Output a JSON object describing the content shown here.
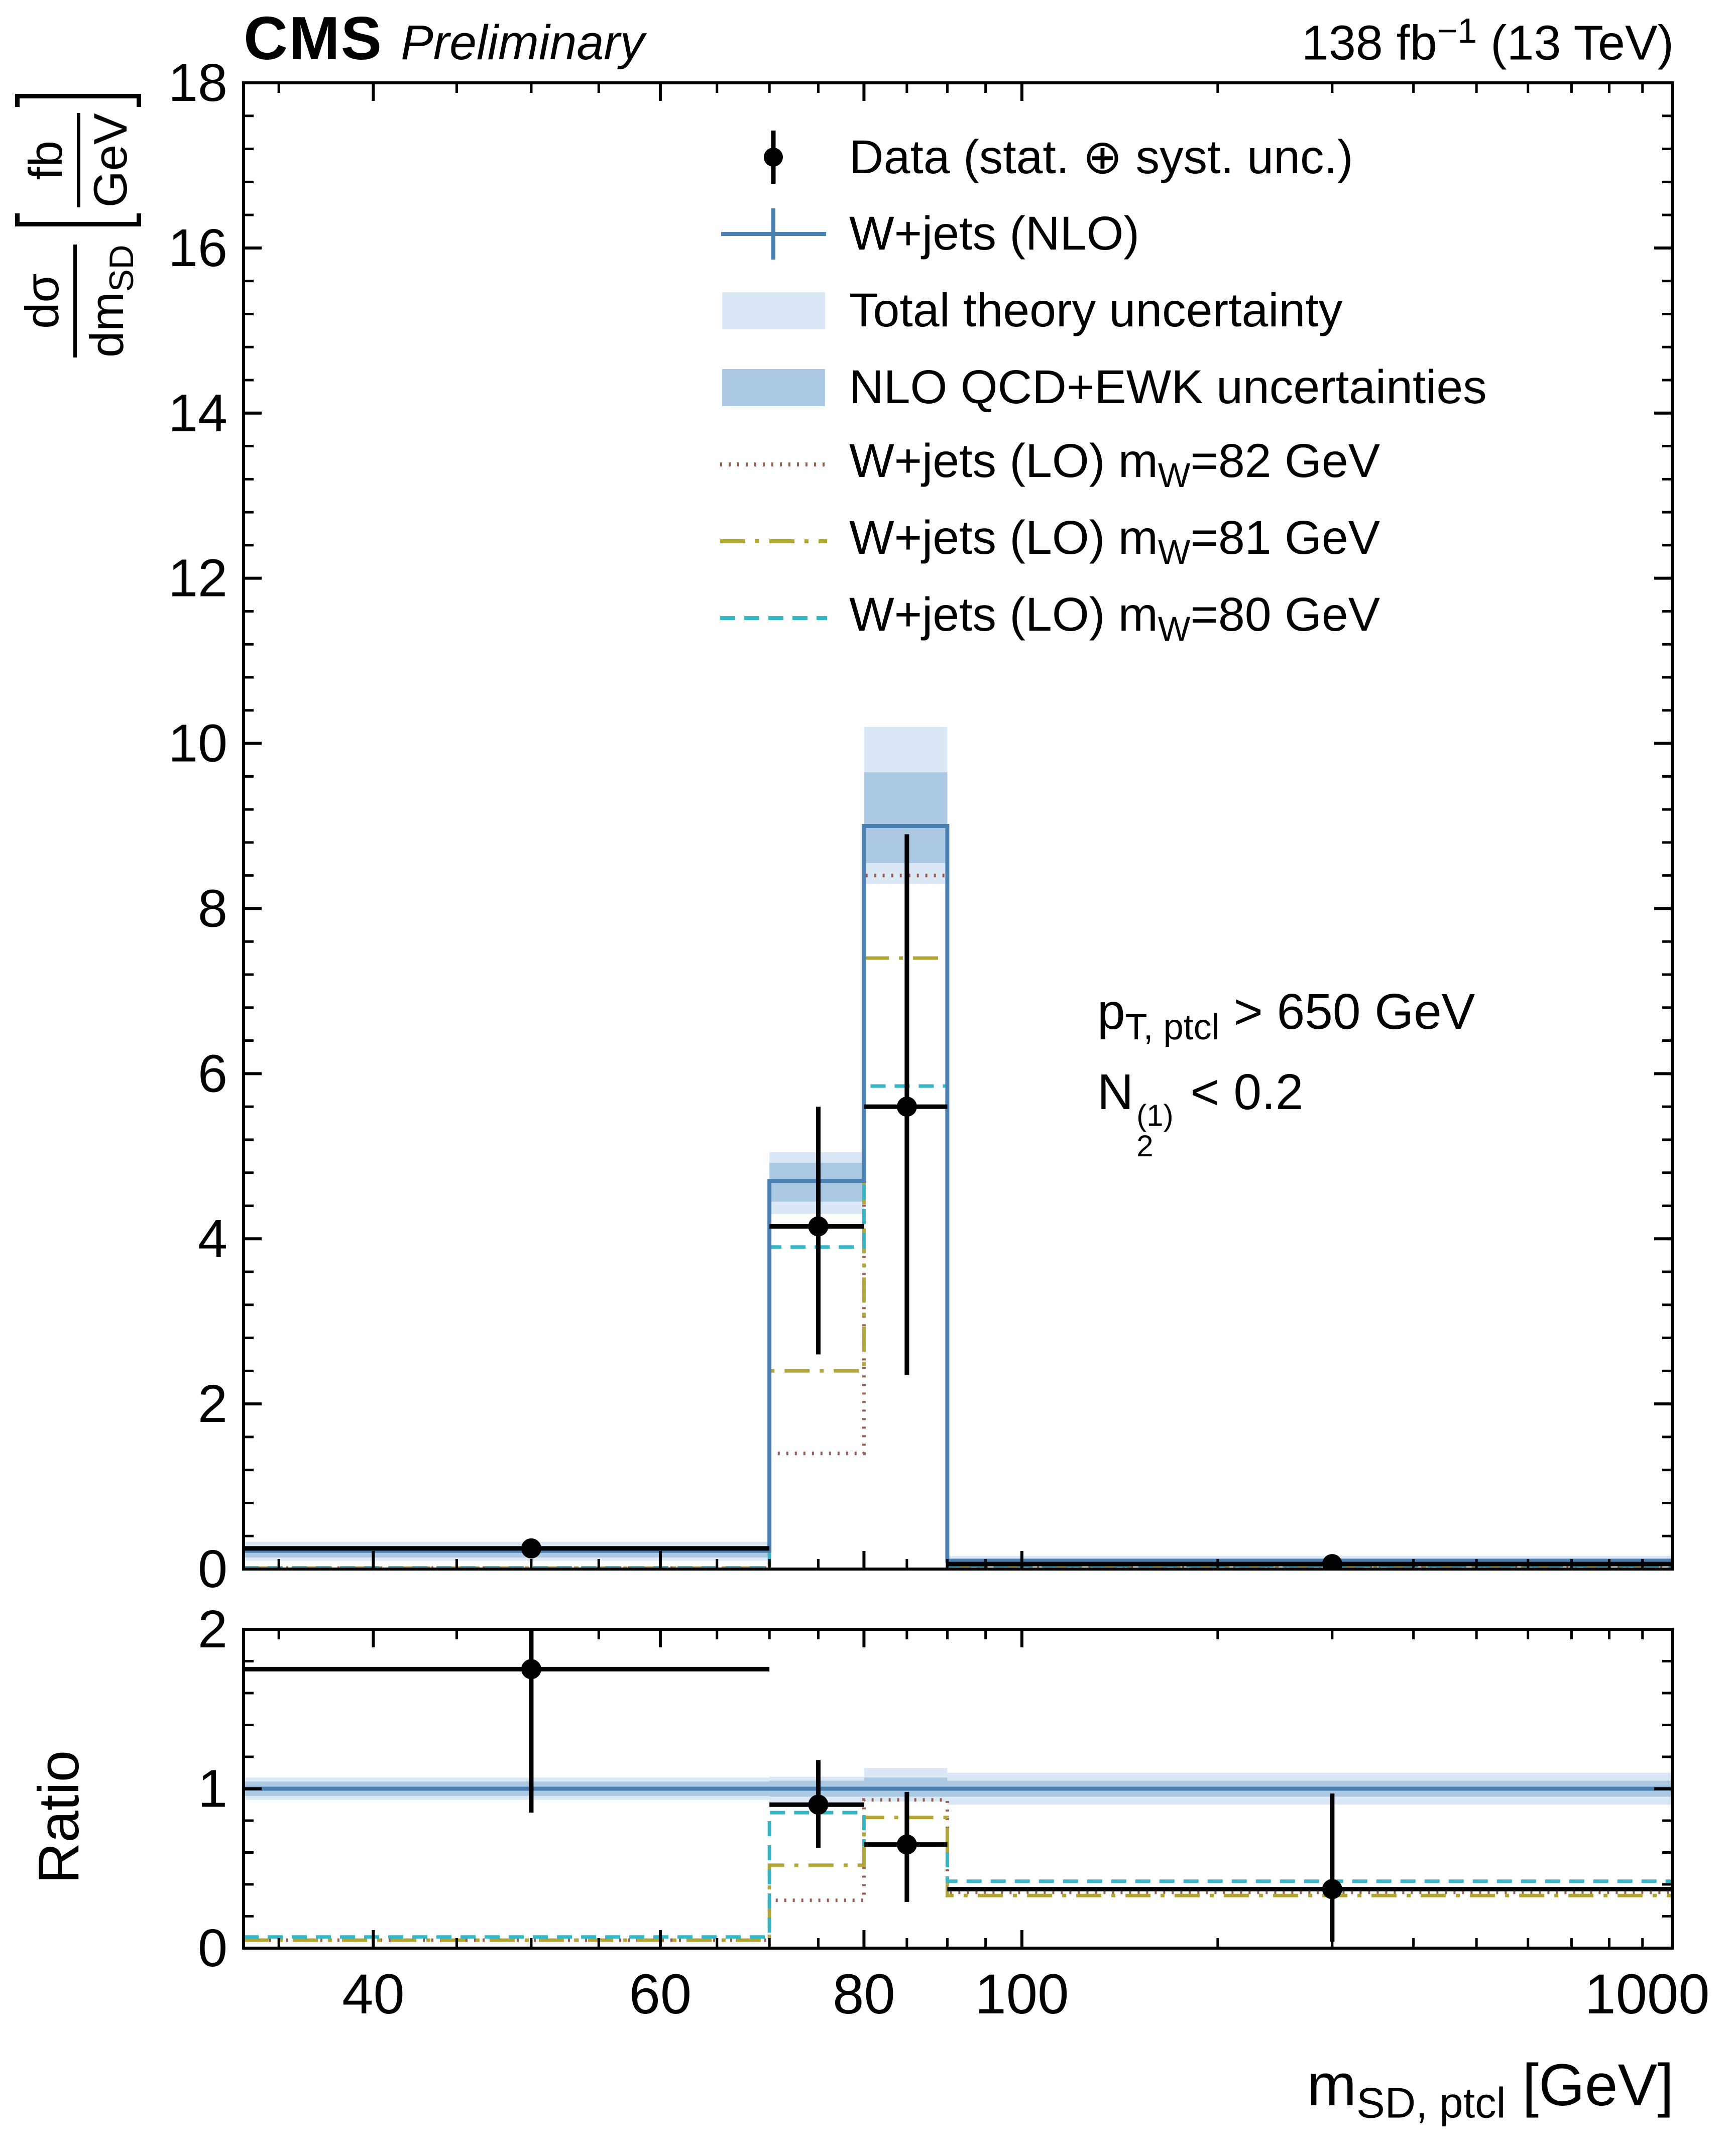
{
  "header": {
    "experiment": "CMS",
    "label": "Preliminary",
    "lumi_prefix": "138 fb",
    "lumi_sup": "−1",
    "lumi_suffix": " (13 TeV)"
  },
  "axis_titles": {
    "y_main": {
      "num": "dσ",
      "den_base": "dm",
      "den_sub": "SD",
      "unit_num": "fb",
      "unit_den": "GeV"
    },
    "y_ratio": "Ratio",
    "x": {
      "base": "m",
      "sub": "SD, ptcl",
      "unit": " [GeV]"
    }
  },
  "annotation": {
    "line1_base": "p",
    "line1_sub": "T, ptcl",
    "line1_rest": " > 650 GeV",
    "line2_base": "N",
    "line2_sup": "(1)",
    "line2_sub": "2",
    "line2_rest": " < 0.2"
  },
  "chart_data": {
    "type": "bar",
    "subtype": "step-histogram-with-ratio-panel",
    "title": "CMS Preliminary 138 fb-1 (13 TeV)",
    "x": {
      "label": "m_SD,ptcl [GeV]",
      "scale": "log-piecewise",
      "range": [
        33.3,
        1000
      ],
      "anchors": [
        [
          33.3,
          0.0
        ],
        [
          100,
          0.5448
        ],
        [
          1000,
          1.0
        ]
      ],
      "major_ticks": [
        40,
        60,
        80,
        100,
        1000
      ],
      "minor_ticks": [
        35,
        45,
        50,
        55,
        65,
        70,
        75,
        85,
        90,
        95,
        200,
        300,
        400,
        500,
        600,
        700,
        800,
        900
      ]
    },
    "y_main": {
      "label": "dσ/dm_SD [fb/GeV]",
      "range": [
        0,
        18
      ],
      "major_step": 2,
      "minor_step": 0.4
    },
    "y_ratio": {
      "label": "Ratio",
      "range": [
        0,
        2
      ],
      "major_ticks": [
        0,
        1,
        2
      ],
      "minor_step": 0.2
    },
    "bin_edges": [
      33.3,
      70,
      80,
      90,
      1000
    ],
    "series": {
      "nlo": {
        "label": "W+jets (NLO)",
        "color": "#4a7fb2",
        "values": [
          0.22,
          4.7,
          9.0,
          0.1
        ],
        "ratio": [
          1,
          1,
          1,
          1
        ]
      },
      "total_unc": {
        "label": "Total theory uncertainty",
        "color": "#dbe9f6",
        "low": [
          0.1,
          4.3,
          8.3,
          0.04
        ],
        "high": [
          0.33,
          5.05,
          10.2,
          0.16
        ],
        "ratio_low": [
          0.93,
          0.915,
          0.92,
          0.9
        ],
        "ratio_high": [
          1.07,
          1.075,
          1.13,
          1.1
        ]
      },
      "qcd_ewk_unc": {
        "label": "NLO QCD+EWK uncertainties",
        "color": "#abc9e2",
        "low": [
          0.14,
          4.45,
          8.55,
          0.06
        ],
        "high": [
          0.28,
          4.92,
          9.65,
          0.13
        ],
        "ratio_low": [
          0.955,
          0.95,
          0.95,
          0.95
        ],
        "ratio_high": [
          1.045,
          1.05,
          1.07,
          1.05
        ]
      },
      "lo_mw82": {
        "label": "W+jets (LO) mW=82 GeV",
        "color": "#9b5c50",
        "dash": "dotted",
        "values": [
          0.012,
          1.4,
          8.4,
          0.035
        ],
        "ratio": [
          0.05,
          0.3,
          0.93,
          0.35
        ]
      },
      "lo_mw81": {
        "label": "W+jets (LO) mW=81 GeV",
        "color": "#b2a634",
        "dash": "dashdot",
        "values": [
          0.012,
          2.4,
          7.4,
          0.033
        ],
        "ratio": [
          0.05,
          0.52,
          0.82,
          0.33
        ]
      },
      "lo_mw80": {
        "label": "W+jets (LO) mW=80 GeV",
        "color": "#33b6c6",
        "dash": "dashed",
        "values": [
          0.015,
          3.9,
          5.85,
          0.042
        ],
        "ratio": [
          0.07,
          0.85,
          0.65,
          0.42
        ]
      }
    },
    "data_points": {
      "label": "Data (stat. ⊕ syst. unc.)",
      "color": "#000000",
      "x": [
        50,
        75,
        85,
        300
      ],
      "y": [
        0.25,
        4.15,
        5.6,
        0.06
      ],
      "err_low": [
        0.1,
        1.55,
        3.25,
        0.05
      ],
      "err_high": [
        0.1,
        1.45,
        3.3,
        0.1
      ],
      "ratio_y": [
        1.75,
        0.9,
        0.65,
        0.37
      ],
      "ratio_err_low": [
        0.9,
        0.27,
        0.36,
        0.33
      ],
      "ratio_err_high": [
        0.6,
        0.28,
        0.33,
        0.6
      ]
    },
    "legend": [
      {
        "marker": "data",
        "parts": [
          {
            "t": "Data (stat. ⊕ syst. unc.)"
          }
        ]
      },
      {
        "marker": "nlo",
        "parts": [
          {
            "t": "W+jets (NLO)"
          }
        ]
      },
      {
        "marker": "band_light",
        "parts": [
          {
            "t": "Total theory uncertainty"
          }
        ]
      },
      {
        "marker": "band_dark",
        "parts": [
          {
            "t": "NLO QCD+EWK uncertainties"
          }
        ]
      },
      {
        "marker": "lo_mw82",
        "parts": [
          {
            "t": "W+jets (LO) m"
          },
          {
            "sub": "W"
          },
          {
            "t": "=82 GeV"
          }
        ]
      },
      {
        "marker": "lo_mw81",
        "parts": [
          {
            "t": "W+jets (LO) m"
          },
          {
            "sub": "W"
          },
          {
            "t": "=81 GeV"
          }
        ]
      },
      {
        "marker": "lo_mw80",
        "parts": [
          {
            "t": "W+jets (LO) m"
          },
          {
            "sub": "W"
          },
          {
            "t": "=80 GeV"
          }
        ]
      }
    ],
    "layout": {
      "frame": {
        "left": 485,
        "right": 3330,
        "main_top": 165,
        "main_bottom": 3125,
        "ratio_top": 3245,
        "ratio_bottom": 3880
      },
      "legend_position": "top-right-inside",
      "grid": false
    }
  }
}
